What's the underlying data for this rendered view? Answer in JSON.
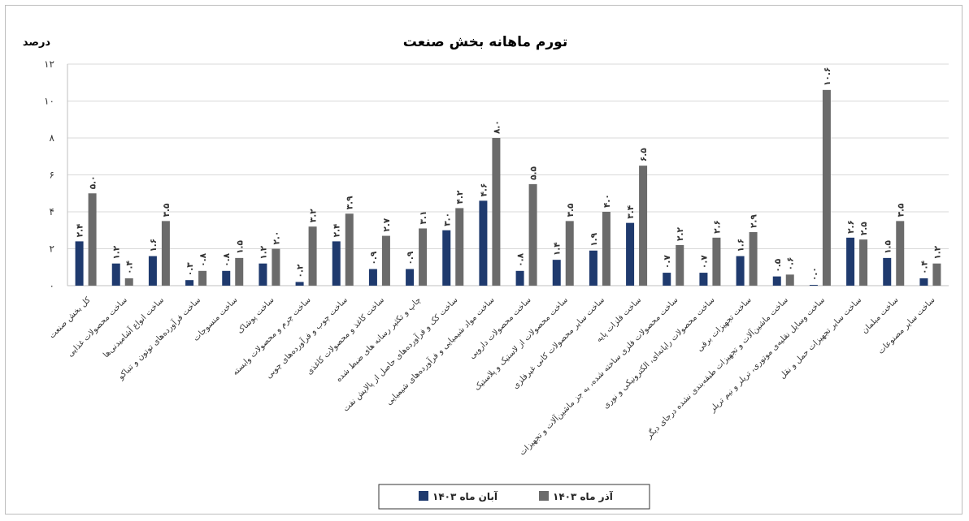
{
  "chart_data": {
    "type": "bar",
    "title": "تورم ماهانه بخش صنعت",
    "ylabel": "درصد",
    "ylim": [
      0,
      12
    ],
    "yticks": [
      0,
      2,
      4,
      6,
      8,
      10,
      12
    ],
    "ytick_labels": [
      "۰",
      "۲",
      "۴",
      "۶",
      "۸",
      "۱۰",
      "۱۲"
    ],
    "grid": true,
    "legend_position": "bottom",
    "categories": [
      "کل بخش صنعت",
      "ساخت محصولات غذایی",
      "ساخت انواع آشامیدنی‌ها",
      "ساخت فرآورده‌های توتون و تنباکو",
      "ساخت منسوجات",
      "ساخت پوشاک",
      "ساخت چرم و محصولات وابسته",
      "ساخت چوب و فرآورده‌های چوبی",
      "ساخت کاغذ و محصولات کاغذی",
      "چاپ و تکثیر رسانه های ضبط شده",
      "ساخت کک و فرآورده‌های حاصل از پالایش نفت",
      "ساخت مواد شیمیایی و فرآورده‌های شیمیایی",
      "ساخت محصولات دارویی",
      "ساخت محصولات از لاستیک و پلاستیک",
      "ساخت سایر محصولات کانی غیرفلزی",
      "ساخت فلزات پایه",
      "ساخت محصولات فلزی ساخته شده، به جز ماشین‌آلات و تجهیزات",
      "ساخت محصولات رایانه‌ای، الکترونیکی و نوری",
      "ساخت تجهیزات برقی",
      "ساخت ماشین‌آلات و تجهیزات طبقه‌بندی نشده درجای دیگر",
      "ساخت وسایل نقلیه‌ی موتوری، تریلر و نیم تریلر",
      "ساخت سایر تجهیزات حمل و نقل",
      "ساخت مبلمان",
      "ساخت سایر مصنوعات"
    ],
    "series": [
      {
        "name": "آبان ماه ۱۴۰۳",
        "color": "#1f3a6e",
        "values": [
          2.4,
          1.2,
          1.6,
          0.3,
          0.8,
          1.2,
          0.2,
          2.4,
          0.9,
          0.9,
          3.0,
          4.6,
          0.8,
          1.4,
          1.9,
          3.4,
          0.7,
          0.7,
          1.6,
          0.5,
          0.0,
          2.6,
          1.5,
          0.4
        ],
        "labels": [
          "۲.۴",
          "۱.۲",
          "۱.۶",
          "۰.۳",
          "۰.۸",
          "۱.۲",
          "۰.۲",
          "۲.۴",
          "۰.۹",
          "۰.۹",
          "۳.۰",
          "۴.۶",
          "۰.۸",
          "۱.۴",
          "۱.۹",
          "۳.۴",
          "۰.۷",
          "۰.۷",
          "۱.۶",
          "۰.۵",
          "۰.۰",
          "۲.۶",
          "۱.۵",
          "۰.۴"
        ]
      },
      {
        "name": "آذر ماه ۱۴۰۳",
        "color": "#6b6b6b",
        "values": [
          5.0,
          0.4,
          3.5,
          0.8,
          1.5,
          2.0,
          3.2,
          3.9,
          2.7,
          3.1,
          4.2,
          8.0,
          5.5,
          3.5,
          4.0,
          6.5,
          2.2,
          2.6,
          2.9,
          0.6,
          10.6,
          2.5,
          3.5,
          1.2
        ],
        "labels": [
          "۵.۰",
          "۰.۴",
          "۳.۵",
          "۰.۸",
          "۱.۵",
          "۲.۰",
          "۳.۲",
          "۳.۹",
          "۲.۷",
          "۳.۱",
          "۴.۲",
          "۸.۰",
          "۵.۵",
          "۳.۵",
          "۴.۰",
          "۶.۵",
          "۲.۲",
          "۲.۶",
          "۲.۹",
          "۰.۶",
          "۱۰.۶",
          "۲.۵",
          "۳.۵",
          "۱.۲"
        ]
      }
    ]
  }
}
